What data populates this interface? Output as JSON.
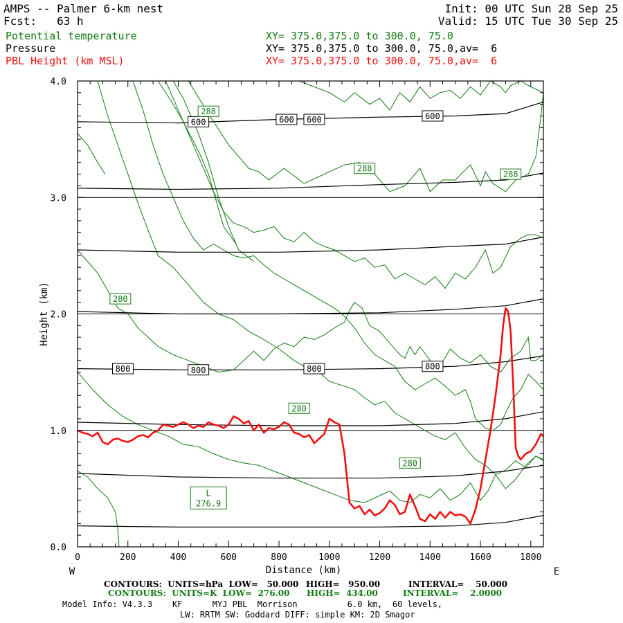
{
  "header": {
    "title": "AMPS -- Palmer 6-km nest",
    "fcst": "Fcst:   63 h",
    "init": "Init: 00 UTC Sun 28 Sep 25",
    "valid": "Valid: 15 UTC Tue 30 Sep 25",
    "fields": [
      {
        "name": "Potential temperature",
        "xy": "XY= 375.0,375.0 to 300.0, 75.0",
        "color": "#137a13"
      },
      {
        "name": "Pressure",
        "xy": "XY= 375.0,375.0 to 300.0, 75.0,av=  6",
        "color": "#000000"
      },
      {
        "name": "PBL Height (km MSL)",
        "xy": "XY= 375.0,375.0 to 300.0, 75.0,av=  6",
        "color": "#ee1111"
      }
    ]
  },
  "chart_data": {
    "type": "line",
    "title": "AMPS -- Palmer 6-km nest",
    "xlabel": "Distance (km)",
    "ylabel": "Height (km)",
    "xlim": [
      0,
      1850
    ],
    "ylim": [
      0,
      4
    ],
    "x_ticks": [
      0,
      200,
      400,
      600,
      800,
      1000,
      1200,
      1400,
      1600,
      1800
    ],
    "y_ticks": [
      0,
      1,
      2,
      3,
      4
    ],
    "y_tick_labels": [
      "0.0",
      "1.0",
      "2.0",
      "3.0",
      "4.0"
    ],
    "west_label": "W",
    "east_label": "E",
    "pressure_contours": [
      {
        "level": 950,
        "x": [
          0,
          400,
          800,
          1200,
          1500,
          1700,
          1850
        ],
        "y": [
          0.18,
          0.17,
          0.17,
          0.17,
          0.18,
          0.21,
          0.27
        ]
      },
      {
        "level": 900,
        "x": [
          0,
          400,
          800,
          1200,
          1500,
          1700,
          1850
        ],
        "y": [
          0.63,
          0.6,
          0.59,
          0.59,
          0.61,
          0.65,
          0.7
        ]
      },
      {
        "level": 850,
        "x": [
          0,
          400,
          800,
          1200,
          1500,
          1700,
          1850
        ],
        "y": [
          1.07,
          1.05,
          1.04,
          1.04,
          1.06,
          1.1,
          1.16
        ]
      },
      {
        "level": 800,
        "x": [
          0,
          400,
          800,
          1200,
          1500,
          1700,
          1850
        ],
        "y": [
          1.53,
          1.52,
          1.52,
          1.53,
          1.55,
          1.59,
          1.64
        ]
      },
      {
        "level": 750,
        "x": [
          0,
          400,
          800,
          1200,
          1500,
          1700,
          1850
        ],
        "y": [
          2.02,
          2.0,
          2.0,
          2.01,
          2.04,
          2.07,
          2.13
        ]
      },
      {
        "level": 700,
        "x": [
          0,
          400,
          800,
          1200,
          1500,
          1700,
          1850
        ],
        "y": [
          2.55,
          2.53,
          2.53,
          2.55,
          2.58,
          2.6,
          2.66
        ]
      },
      {
        "level": 650,
        "x": [
          0,
          400,
          800,
          1200,
          1500,
          1700,
          1850
        ],
        "y": [
          3.08,
          3.07,
          3.08,
          3.11,
          3.13,
          3.15,
          3.21
        ]
      },
      {
        "level": 600,
        "x": [
          0,
          400,
          800,
          1200,
          1500,
          1700,
          1850
        ],
        "y": [
          3.65,
          3.64,
          3.67,
          3.69,
          3.7,
          3.72,
          3.82
        ]
      }
    ],
    "pressure_labels": [
      {
        "text": "600",
        "x": 480,
        "y": 3.65
      },
      {
        "text": "600",
        "x": 830,
        "y": 3.67
      },
      {
        "text": "600",
        "x": 940,
        "y": 3.67
      },
      {
        "text": "600",
        "x": 1410,
        "y": 3.7
      },
      {
        "text": "800",
        "x": 180,
        "y": 1.53
      },
      {
        "text": "800",
        "x": 480,
        "y": 1.52
      },
      {
        "text": "800",
        "x": 940,
        "y": 1.53
      },
      {
        "text": "800",
        "x": 1410,
        "y": 1.55
      }
    ],
    "theta_contours": [
      {
        "x": [
          0,
          40,
          80,
          110
        ],
        "y": [
          3.55,
          3.45,
          3.3,
          3.2
        ]
      },
      {
        "x": [
          320,
          380,
          420,
          480,
          520,
          560,
          580,
          630
        ],
        "y": [
          4.0,
          3.8,
          3.65,
          3.4,
          3.2,
          2.9,
          2.75,
          2.6
        ]
      },
      {
        "x": [
          380,
          420,
          480,
          520,
          560,
          600,
          640,
          700
        ],
        "y": [
          4.0,
          3.85,
          3.55,
          3.3,
          3.0,
          2.75,
          2.55,
          2.45
        ]
      },
      {
        "x": [
          440,
          520,
          600,
          680,
          720,
          760,
          820,
          900,
          980,
          1060,
          1120,
          1180,
          1240,
          1300,
          1360,
          1400,
          1450,
          1500,
          1560,
          1600,
          1620,
          1650
        ],
        "y": [
          4.0,
          3.72,
          3.45,
          3.25,
          3.22,
          3.15,
          3.25,
          3.12,
          3.2,
          3.28,
          3.3,
          3.2,
          3.05,
          3.1,
          3.25,
          3.05,
          3.15,
          3.15,
          3.28,
          3.1,
          3.22,
          3.12
        ]
      },
      {
        "x": [
          1650,
          1700,
          1740,
          1790,
          1820,
          1840,
          1850
        ],
        "y": [
          3.12,
          3.05,
          3.15,
          3.2,
          3.35,
          3.7,
          3.9
        ]
      },
      {
        "x": [
          880,
          940,
          1000,
          1060,
          1100,
          1160,
          1200,
          1240,
          1280,
          1320,
          1360,
          1400,
          1440,
          1480,
          1520,
          1560,
          1600,
          1640,
          1680,
          1700,
          1720,
          1760,
          1800,
          1850
        ],
        "y": [
          4.0,
          3.95,
          3.9,
          3.82,
          3.9,
          3.8,
          3.85,
          3.75,
          3.9,
          3.82,
          3.95,
          3.85,
          3.9,
          3.92,
          3.85,
          3.95,
          3.88,
          4.0,
          3.95,
          3.9,
          3.96,
          4.0,
          3.95,
          3.9
        ]
      },
      {
        "x": [
          0,
          60,
          120,
          180,
          240,
          300,
          360,
          420,
          480,
          540,
          600,
          660,
          720,
          780,
          840,
          900,
          960,
          1020,
          1080,
          1140,
          1200,
          1240,
          1280,
          1320,
          1360,
          1400,
          1440,
          1480,
          1520,
          1560,
          1600,
          1630,
          1660,
          1700,
          1740,
          1780,
          1820,
          1850
        ],
        "y": [
          1.5,
          1.35,
          1.22,
          1.12,
          1.05,
          1.0,
          0.95,
          0.88,
          0.86,
          0.8,
          0.75,
          0.72,
          0.7,
          0.65,
          0.6,
          0.55,
          0.5,
          0.45,
          0.4,
          0.38,
          0.44,
          0.48,
          0.4,
          0.38,
          0.45,
          0.42,
          0.5,
          0.4,
          0.45,
          0.55,
          0.4,
          0.48,
          0.62,
          0.5,
          0.58,
          0.7,
          0.78,
          0.75
        ]
      },
      {
        "x": [
          0,
          40,
          80,
          120,
          150,
          160,
          165
        ],
        "y": [
          0.65,
          0.6,
          0.5,
          0.42,
          0.3,
          0.15,
          0.0
        ]
      },
      {
        "x": [
          0,
          40,
          80,
          120,
          160,
          200,
          240,
          280,
          320,
          380,
          440,
          500,
          560,
          620,
          660,
          700,
          740,
          780,
          820,
          860,
          900,
          940,
          980,
          1020,
          1060,
          1080,
          1100,
          1130,
          1160,
          1200,
          1240,
          1280,
          1300,
          1320,
          1340,
          1360,
          1400,
          1440,
          1480,
          1520,
          1560,
          1600,
          1640,
          1680,
          1720,
          1760,
          1790,
          1800,
          1820,
          1850
        ],
        "y": [
          2.55,
          2.45,
          2.35,
          2.2,
          2.05,
          2.0,
          1.88,
          1.8,
          1.72,
          1.65,
          1.6,
          1.55,
          1.5,
          1.52,
          1.6,
          1.68,
          1.6,
          1.7,
          1.75,
          1.72,
          1.8,
          1.78,
          1.82,
          1.88,
          1.93,
          2.03,
          2.1,
          2.05,
          1.9,
          1.85,
          1.75,
          1.65,
          1.62,
          1.72,
          1.65,
          1.72,
          1.6,
          1.55,
          1.7,
          1.62,
          1.58,
          1.65,
          1.55,
          1.5,
          1.62,
          1.68,
          1.8,
          1.6,
          1.6,
          1.65
        ]
      },
      {
        "x": [
          80,
          120,
          160,
          200,
          240,
          280,
          320,
          380,
          440,
          500,
          560,
          620,
          680,
          740,
          800,
          860,
          900,
          960,
          1000,
          1060,
          1100,
          1140,
          1180,
          1220,
          1260,
          1300,
          1340,
          1380,
          1420,
          1460,
          1500,
          1540,
          1580,
          1620,
          1660,
          1700,
          1740,
          1780,
          1820,
          1850
        ],
        "y": [
          4.0,
          3.7,
          3.45,
          3.2,
          2.95,
          2.72,
          2.5,
          2.4,
          2.25,
          2.1,
          2.0,
          1.95,
          1.85,
          1.78,
          1.7,
          1.6,
          1.55,
          1.5,
          1.42,
          1.38,
          1.35,
          1.28,
          1.22,
          1.25,
          1.15,
          1.1,
          1.05,
          1.0,
          0.95,
          0.92,
          0.98,
          0.85,
          0.75,
          0.7,
          0.62,
          0.66,
          0.74,
          0.68,
          0.78,
          0.74
        ]
      },
      {
        "x": [
          220,
          260,
          300,
          340,
          380,
          420,
          460,
          500,
          540,
          580,
          620,
          660,
          700,
          740,
          780,
          820,
          860,
          900,
          940,
          980,
          1020,
          1060,
          1100,
          1140,
          1180,
          1220,
          1260,
          1300,
          1340,
          1380,
          1420,
          1460,
          1500,
          1540,
          1560,
          1580,
          1620,
          1650,
          1680,
          1700,
          1730,
          1760,
          1790,
          1820,
          1850
        ],
        "y": [
          4.0,
          3.75,
          3.45,
          3.2,
          3.0,
          2.8,
          2.65,
          2.55,
          2.6,
          2.55,
          2.5,
          2.48,
          2.5,
          2.42,
          2.35,
          2.3,
          2.25,
          2.2,
          2.15,
          2.1,
          2.05,
          1.98,
          1.88,
          1.75,
          1.65,
          1.6,
          1.55,
          1.42,
          1.35,
          1.4,
          1.45,
          1.38,
          1.3,
          1.35,
          1.25,
          1.1,
          1.02,
          1.0,
          1.05,
          1.15,
          1.28,
          1.35,
          1.48,
          1.42,
          1.35
        ]
      },
      {
        "x": [
          350,
          380,
          420,
          460,
          500,
          540,
          580,
          620,
          660,
          700,
          740,
          780,
          820,
          860,
          900,
          940,
          980,
          1020,
          1060,
          1100,
          1140,
          1180,
          1220,
          1260,
          1300,
          1340,
          1380,
          1420,
          1460,
          1500,
          1540,
          1580,
          1620,
          1650,
          1680,
          1720,
          1760,
          1790,
          1820,
          1850
        ],
        "y": [
          4.0,
          3.85,
          3.65,
          3.45,
          3.25,
          3.05,
          2.88,
          2.78,
          2.75,
          2.7,
          2.72,
          2.75,
          2.65,
          2.62,
          2.7,
          2.62,
          2.58,
          2.55,
          2.5,
          2.45,
          2.48,
          2.4,
          2.42,
          2.3,
          2.35,
          2.3,
          2.25,
          2.32,
          2.22,
          2.35,
          2.3,
          2.4,
          2.55,
          2.35,
          2.4,
          2.58,
          2.65,
          2.68,
          2.68,
          2.65
        ]
      }
    ],
    "theta_labels": [
      {
        "text": "288",
        "x": 520,
        "y": 3.74
      },
      {
        "text": "288",
        "x": 1140,
        "y": 3.25
      },
      {
        "text": "288",
        "x": 1720,
        "y": 3.2
      },
      {
        "text": "280",
        "x": 170,
        "y": 2.13
      },
      {
        "text": "280",
        "x": 880,
        "y": 1.19
      },
      {
        "text": "280",
        "x": 1320,
        "y": 0.72
      }
    ],
    "low_label": {
      "text": "L",
      "value": "276.9",
      "x": 520,
      "y": 0.42
    },
    "pbl_height": {
      "name": "PBL Height (km MSL)",
      "color": "#ee1111",
      "x": [
        0,
        20,
        40,
        60,
        80,
        100,
        120,
        140,
        160,
        180,
        200,
        220,
        240,
        260,
        280,
        300,
        320,
        340,
        360,
        380,
        400,
        420,
        440,
        460,
        480,
        500,
        520,
        540,
        560,
        580,
        600,
        620,
        640,
        660,
        680,
        700,
        720,
        740,
        760,
        780,
        800,
        820,
        840,
        860,
        880,
        900,
        920,
        940,
        960,
        980,
        1000,
        1020,
        1040,
        1060,
        1080,
        1100,
        1120,
        1140,
        1160,
        1180,
        1200,
        1220,
        1240,
        1260,
        1280,
        1300,
        1320,
        1340,
        1360,
        1380,
        1400,
        1420,
        1440,
        1460,
        1480,
        1500,
        1520,
        1540,
        1560,
        1580,
        1600,
        1620,
        1640,
        1660,
        1680,
        1690,
        1700,
        1710,
        1720,
        1730,
        1740,
        1750,
        1760,
        1780,
        1800,
        1820,
        1840,
        1850
      ],
      "y": [
        1.0,
        0.98,
        0.97,
        0.95,
        0.98,
        0.9,
        0.88,
        0.92,
        0.93,
        0.91,
        0.9,
        0.92,
        0.95,
        0.96,
        0.94,
        0.98,
        1.0,
        1.05,
        1.04,
        1.03,
        1.05,
        1.07,
        1.05,
        1.02,
        1.04,
        1.03,
        1.07,
        1.05,
        1.04,
        1.02,
        1.05,
        1.12,
        1.1,
        1.06,
        1.08,
        1.0,
        1.05,
        0.98,
        1.02,
        1.01,
        1.03,
        1.07,
        1.05,
        0.98,
        0.97,
        0.94,
        0.96,
        0.89,
        0.93,
        0.97,
        1.1,
        1.07,
        1.05,
        0.8,
        0.38,
        0.33,
        0.35,
        0.28,
        0.32,
        0.27,
        0.29,
        0.33,
        0.4,
        0.36,
        0.28,
        0.3,
        0.45,
        0.35,
        0.24,
        0.22,
        0.28,
        0.24,
        0.3,
        0.25,
        0.3,
        0.27,
        0.28,
        0.26,
        0.2,
        0.32,
        0.5,
        0.75,
        1.0,
        1.3,
        1.65,
        1.9,
        2.05,
        2.02,
        1.85,
        1.4,
        0.85,
        0.78,
        0.75,
        0.8,
        0.82,
        0.88,
        0.97,
        0.95
      ]
    }
  },
  "footer": {
    "line1_black_a": "CONTOURS:  UNITS=hPa  LOW=   50.000",
    "line1_black_b": "HIGH=   950.00",
    "line1_black_c": "INTERVAL=    50.000",
    "line2_green_a": "CONTOURS:  UNITS=K  LOW=  276.00",
    "line2_green_b": "HIGH=  434.00",
    "line2_green_c": "INTERVAL=    2.0000",
    "model_info": "Model Info: V4.3.3    KF      MYJ PBL  Morrison          6.0 km,  60 levels,",
    "model_info2": "LW: RRTM SW: Goddard DIFF: simple KM: 2D Smagor"
  }
}
